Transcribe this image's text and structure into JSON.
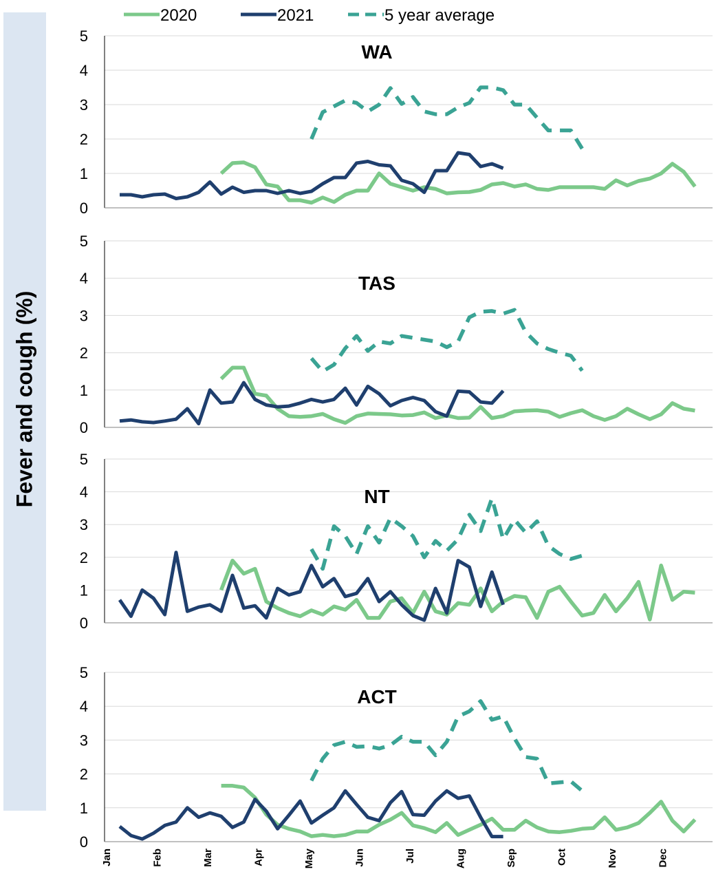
{
  "chart_data": {
    "type": "line",
    "ylabel": "Fever and cough (%)",
    "months": [
      "Jan",
      "Feb",
      "Mar",
      "Apr",
      "May",
      "Jun",
      "Jul",
      "Aug",
      "Sep",
      "Oct",
      "Nov",
      "Dec"
    ],
    "legend": [
      {
        "name": "2020",
        "color": "#7cc98a",
        "style": "solid"
      },
      {
        "name": "2021",
        "color": "#1f3f6e",
        "style": "solid"
      },
      {
        "name": "5 year average",
        "color": "#3aa394",
        "style": "dashed"
      }
    ],
    "legend_position": "top",
    "ylim": [
      0,
      5
    ],
    "yticks": [
      0,
      1,
      2,
      3,
      4,
      5
    ],
    "grid": "horizontal",
    "x_unit": "week",
    "panels": [
      {
        "title": "WA",
        "series": [
          {
            "name": "2020",
            "start_week": 10,
            "values": [
              1.0,
              1.3,
              1.32,
              1.18,
              0.68,
              0.62,
              0.22,
              0.22,
              0.15,
              0.3,
              0.17,
              0.38,
              0.5,
              0.5,
              1.0,
              0.7,
              0.6,
              0.5,
              0.6,
              0.55,
              0.42,
              0.45,
              0.46,
              0.52,
              0.68,
              0.72,
              0.62,
              0.68,
              0.55,
              0.52,
              0.6,
              0.6,
              0.6,
              0.6,
              0.55,
              0.8,
              0.65,
              0.78,
              0.85,
              1.0,
              1.28,
              1.05,
              0.62
            ]
          },
          {
            "name": "2021",
            "start_week": 1,
            "values": [
              0.38,
              0.38,
              0.32,
              0.38,
              0.4,
              0.27,
              0.32,
              0.45,
              0.75,
              0.4,
              0.6,
              0.45,
              0.5,
              0.5,
              0.42,
              0.5,
              0.42,
              0.48,
              0.7,
              0.88,
              0.88,
              1.3,
              1.35,
              1.25,
              1.22,
              0.8,
              0.7,
              0.45,
              1.08,
              1.08,
              1.6,
              1.55,
              1.2,
              1.28,
              1.15
            ]
          },
          {
            "name": "5 year average",
            "start_week": 18,
            "values": [
              2.0,
              2.78,
              2.95,
              3.12,
              3.05,
              2.8,
              3.0,
              3.48,
              3.02,
              3.22,
              2.8,
              2.72,
              2.72,
              2.92,
              3.05,
              3.5,
              3.5,
              3.42,
              3.0,
              3.0,
              2.62,
              2.25,
              2.25,
              2.25,
              1.72
            ]
          }
        ]
      },
      {
        "title": "TAS",
        "series": [
          {
            "name": "2020",
            "start_week": 10,
            "values": [
              1.3,
              1.6,
              1.6,
              0.9,
              0.85,
              0.5,
              0.3,
              0.28,
              0.3,
              0.36,
              0.22,
              0.12,
              0.3,
              0.37,
              0.36,
              0.35,
              0.32,
              0.33,
              0.4,
              0.25,
              0.32,
              0.25,
              0.26,
              0.55,
              0.25,
              0.3,
              0.43,
              0.45,
              0.46,
              0.42,
              0.28,
              0.38,
              0.46,
              0.3,
              0.2,
              0.3,
              0.5,
              0.35,
              0.22,
              0.35,
              0.65,
              0.5,
              0.45
            ]
          },
          {
            "name": "2021",
            "start_week": 1,
            "values": [
              0.17,
              0.2,
              0.15,
              0.13,
              0.17,
              0.22,
              0.5,
              0.1,
              1.0,
              0.65,
              0.68,
              1.2,
              0.75,
              0.6,
              0.55,
              0.57,
              0.65,
              0.75,
              0.68,
              0.75,
              1.05,
              0.6,
              1.1,
              0.9,
              0.58,
              0.72,
              0.8,
              0.72,
              0.42,
              0.3,
              0.97,
              0.95,
              0.68,
              0.65,
              0.98
            ]
          },
          {
            "name": "5 year average",
            "start_week": 18,
            "values": [
              1.85,
              1.5,
              1.68,
              2.12,
              2.45,
              2.05,
              2.3,
              2.25,
              2.45,
              2.4,
              2.35,
              2.3,
              2.15,
              2.3,
              2.95,
              3.1,
              3.12,
              3.05,
              3.15,
              2.55,
              2.25,
              2.1,
              2.0,
              1.92,
              1.52
            ]
          }
        ]
      },
      {
        "title": "NT",
        "series": [
          {
            "name": "2020",
            "start_week": 10,
            "values": [
              1.0,
              1.9,
              1.5,
              1.65,
              0.65,
              0.45,
              0.3,
              0.2,
              0.38,
              0.25,
              0.5,
              0.4,
              0.7,
              0.15,
              0.15,
              0.65,
              0.75,
              0.3,
              0.95,
              0.35,
              0.25,
              0.6,
              0.55,
              1.05,
              0.35,
              0.65,
              0.82,
              0.78,
              0.15,
              0.95,
              1.1,
              0.65,
              0.22,
              0.3,
              0.85,
              0.35,
              0.75,
              1.25,
              0.1,
              1.75,
              0.7,
              0.95,
              0.92
            ]
          },
          {
            "name": "2021",
            "start_week": 1,
            "values": [
              0.7,
              0.2,
              1.0,
              0.75,
              0.25,
              2.15,
              0.35,
              0.48,
              0.55,
              0.35,
              1.45,
              0.45,
              0.52,
              0.15,
              1.05,
              0.85,
              0.95,
              1.75,
              1.1,
              1.35,
              0.8,
              0.9,
              1.35,
              0.65,
              0.95,
              0.55,
              0.22,
              0.08,
              1.05,
              0.3,
              1.9,
              1.7,
              0.5,
              1.55,
              0.55
            ]
          },
          {
            "name": "5 year average",
            "start_week": 18,
            "values": [
              2.25,
              1.65,
              2.95,
              2.65,
              2.1,
              2.95,
              2.45,
              3.2,
              2.95,
              2.65,
              2.0,
              2.5,
              2.2,
              2.55,
              3.3,
              2.8,
              3.8,
              2.55,
              3.15,
              2.75,
              3.1,
              2.35,
              2.1,
              1.95,
              2.05
            ]
          }
        ]
      },
      {
        "title": "ACT",
        "series": [
          {
            "name": "2020",
            "start_week": 10,
            "values": [
              1.65,
              1.65,
              1.6,
              1.3,
              0.8,
              0.5,
              0.38,
              0.3,
              0.16,
              0.2,
              0.16,
              0.2,
              0.3,
              0.3,
              0.5,
              0.65,
              0.85,
              0.48,
              0.4,
              0.28,
              0.55,
              0.2,
              0.35,
              0.5,
              0.68,
              0.35,
              0.35,
              0.62,
              0.42,
              0.3,
              0.28,
              0.32,
              0.38,
              0.4,
              0.72,
              0.35,
              0.42,
              0.55,
              0.85,
              1.18,
              0.62,
              0.3,
              0.65
            ]
          },
          {
            "name": "2021",
            "start_week": 1,
            "values": [
              0.45,
              0.18,
              0.08,
              0.25,
              0.48,
              0.58,
              1.0,
              0.72,
              0.85,
              0.75,
              0.42,
              0.58,
              1.25,
              0.9,
              0.38,
              0.78,
              1.2,
              0.55,
              0.78,
              1.0,
              1.5,
              1.1,
              0.72,
              0.62,
              1.15,
              1.48,
              0.8,
              0.78,
              1.2,
              1.5,
              1.28,
              1.35,
              0.72,
              0.15,
              0.15
            ]
          },
          {
            "name": "5 year average",
            "start_week": 18,
            "values": [
              1.8,
              2.45,
              2.85,
              2.95,
              2.8,
              2.82,
              2.75,
              2.85,
              3.1,
              2.95,
              2.95,
              2.55,
              2.95,
              3.7,
              3.85,
              4.15,
              3.6,
              3.7,
              3.05,
              2.5,
              2.45,
              1.72,
              1.75,
              1.78,
              1.5
            ]
          }
        ]
      }
    ]
  }
}
